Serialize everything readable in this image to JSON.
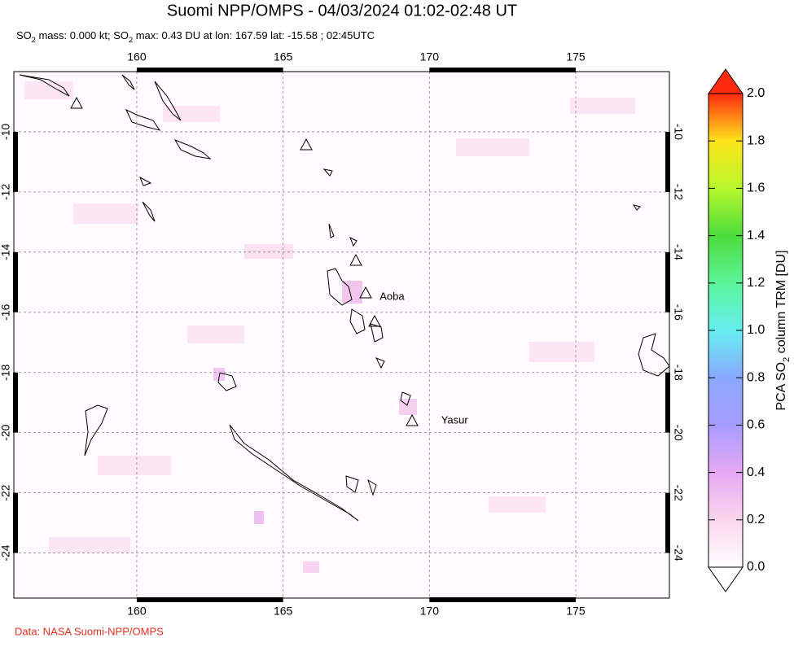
{
  "title": "Suomi NPP/OMPS - 04/03/2024 01:02-02:48 UT",
  "subtitle": [
    "SO",
    "2",
    " mass: 0.000 kt; SO",
    "2",
    " max: 0.43 DU at lon: 167.59 lat: -15.58 ; 02:45UTC"
  ],
  "map": {
    "lonlim": [
      155.8,
      178.2
    ],
    "latlim": [
      -8.0,
      -25.5
    ],
    "lon_ticks": [
      160,
      165,
      170,
      175
    ],
    "lat_ticks": [
      -10,
      -12,
      -14,
      -16,
      -18,
      -20,
      -22,
      -24
    ],
    "labels": [
      {
        "text": "Aoba",
        "lon": 168.3,
        "lat": -15.5
      },
      {
        "text": "Yasur",
        "lon": 170.4,
        "lat": -19.6
      }
    ]
  },
  "colorbar": {
    "title": [
      "PCA SO",
      "2",
      " column TRM [DU]"
    ],
    "range": [
      0.0,
      2.0
    ],
    "colors": [
      "#ffffff",
      "#fbd6ee",
      "#e6a8f4",
      "#a89cff",
      "#8aa8ff",
      "#66eef0",
      "#5cf59a",
      "#4cdc3c",
      "#b8f82c",
      "#ffe41a",
      "#ff2a10"
    ],
    "ticks": [
      {
        "value": 0.0,
        "label": "0.0"
      },
      {
        "value": 0.2,
        "label": "0.2"
      },
      {
        "value": 0.4,
        "label": "0.4"
      },
      {
        "value": 0.6,
        "label": "0.6"
      },
      {
        "value": 0.8,
        "label": "0.8"
      },
      {
        "value": 1.0,
        "label": "1.0"
      },
      {
        "value": 1.2,
        "label": "1.2"
      },
      {
        "value": 1.4,
        "label": "1.4"
      },
      {
        "value": 1.6,
        "label": "1.6"
      },
      {
        "value": 1.8,
        "label": "1.8"
      },
      {
        "value": 2.0,
        "label": "2.0"
      }
    ]
  },
  "footer": "Data: NASA Suomi-NPP/OMPS"
}
